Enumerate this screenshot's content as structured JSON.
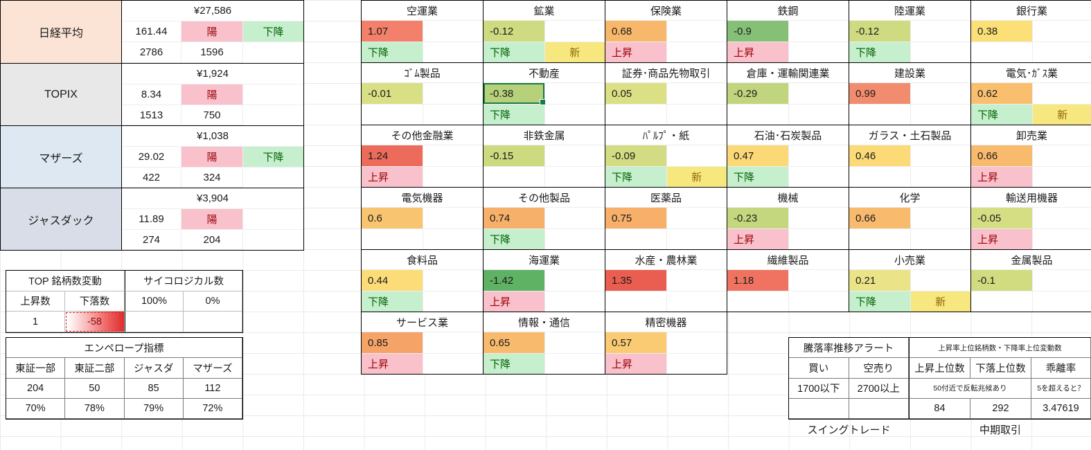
{
  "labels": {
    "up": "上昇",
    "down": "下降",
    "new": "新",
    "swing": "スイングトレード",
    "mid": "中期取引"
  },
  "indices": [
    {
      "name": "日経平均",
      "bg": "#fbe3d5",
      "price": "¥27,586",
      "change": "161.44",
      "candle": "陽",
      "trend": "下降",
      "adv": "2786",
      "dec": "1596"
    },
    {
      "name": "TOPIX",
      "bg": "#e8e8e8",
      "price": "¥1,924",
      "change": "8.34",
      "candle": "陽",
      "trend": "",
      "adv": "1513",
      "dec": "750"
    },
    {
      "name": "マザーズ",
      "bg": "#dde8f2",
      "price": "¥1,038",
      "change": "29.02",
      "candle": "陽",
      "trend": "下降",
      "adv": "422",
      "dec": "324"
    },
    {
      "name": "ジャスダック",
      "bg": "#d8dde7",
      "price": "¥3,904",
      "change": "11.89",
      "candle": "陽",
      "trend": "",
      "adv": "274",
      "dec": "204"
    }
  ],
  "sectors": [
    [
      {
        "name": "空運業",
        "value": "1.07",
        "color": "#f3806a",
        "trend": "down",
        "is_new": false
      },
      {
        "name": "鉱業",
        "value": "-0.12",
        "color": "#cfdb81",
        "trend": "down",
        "is_new": true
      },
      {
        "name": "保険業",
        "value": "0.68",
        "color": "#f8b86c",
        "trend": "up",
        "is_new": false
      },
      {
        "name": "鉄鋼",
        "value": "-0.9",
        "color": "#86c077",
        "trend": "up",
        "is_new": false
      },
      {
        "name": "陸運業",
        "value": "-0.12",
        "color": "#cfdb81",
        "trend": "down",
        "is_new": false
      },
      {
        "name": "銀行業",
        "value": "0.38",
        "color": "#fbe078",
        "trend": null,
        "is_new": false
      }
    ],
    [
      {
        "name": "ｺﾞﾑ製品",
        "value": "-0.01",
        "color": "#d9df84",
        "trend": null,
        "is_new": false
      },
      {
        "name": "不動産",
        "value": "-0.38",
        "color": "#b7d17b",
        "trend": "down",
        "is_new": false,
        "selected": true
      },
      {
        "name": "証券･商品先物取引",
        "value": "0.05",
        "color": "#dce085",
        "trend": null,
        "is_new": false
      },
      {
        "name": "倉庫・運輸関連業",
        "value": "-0.29",
        "color": "#c0d57d",
        "trend": null,
        "is_new": false
      },
      {
        "name": "建設業",
        "value": "0.99",
        "color": "#f28c6e",
        "trend": null,
        "is_new": false
      },
      {
        "name": "電気･ｶﾞｽ業",
        "value": "0.62",
        "color": "#f9bf6e",
        "trend": "down",
        "is_new": true
      }
    ],
    [
      {
        "name": "その他金融業",
        "value": "1.24",
        "color": "#ed6b5b",
        "trend": "up",
        "is_new": false
      },
      {
        "name": "非鉄金属",
        "value": "-0.15",
        "color": "#cdda80",
        "trend": null,
        "is_new": false
      },
      {
        "name": "ﾊﾟﾙﾌﾟ・紙",
        "value": "-0.09",
        "color": "#d3dc82",
        "trend": "down",
        "is_new": true
      },
      {
        "name": "石油･石炭製品",
        "value": "0.47",
        "color": "#fbd977",
        "trend": "down",
        "is_new": false
      },
      {
        "name": "ガラス・土石製品",
        "value": "0.46",
        "color": "#fbda77",
        "trend": null,
        "is_new": false
      },
      {
        "name": "卸売業",
        "value": "0.66",
        "color": "#f8ba6d",
        "trend": "up",
        "is_new": false
      }
    ],
    [
      {
        "name": "電気機器",
        "value": "0.6",
        "color": "#f9c470",
        "trend": null,
        "is_new": false
      },
      {
        "name": "その他製品",
        "value": "0.74",
        "color": "#f7b06a",
        "trend": "down",
        "is_new": false
      },
      {
        "name": "医薬品",
        "value": "0.75",
        "color": "#f7af6a",
        "trend": null,
        "is_new": false
      },
      {
        "name": "機械",
        "value": "-0.23",
        "color": "#c5d77e",
        "trend": "up",
        "is_new": false
      },
      {
        "name": "化学",
        "value": "0.66",
        "color": "#f8ba6d",
        "trend": null,
        "is_new": false
      },
      {
        "name": "輸送用機器",
        "value": "-0.05",
        "color": "#d6de83",
        "trend": "up",
        "is_new": false
      }
    ],
    [
      {
        "name": "食料品",
        "value": "0.44",
        "color": "#fbdc78",
        "trend": "down",
        "is_new": false
      },
      {
        "name": "海運業",
        "value": "-1.42",
        "color": "#5fb163",
        "trend": "up",
        "is_new": false
      },
      {
        "name": "水産・農林業",
        "value": "1.35",
        "color": "#ea5d51",
        "trend": null,
        "is_new": false
      },
      {
        "name": "繊維製品",
        "value": "1.18",
        "color": "#ef7360",
        "trend": null,
        "is_new": false
      },
      {
        "name": "小売業",
        "value": "0.21",
        "color": "#eae387",
        "trend": "down",
        "is_new": true
      },
      {
        "name": "金属製品",
        "value": "-0.1",
        "color": "#d1dc81",
        "trend": null,
        "is_new": false
      }
    ],
    [
      {
        "name": "サービス業",
        "value": "0.85",
        "color": "#f6a368",
        "trend": "up",
        "is_new": false
      },
      {
        "name": "情報・通信",
        "value": "0.65",
        "color": "#f8bb6d",
        "trend": "down",
        "is_new": false
      },
      {
        "name": "精密機器",
        "value": "0.57",
        "color": "#facb73",
        "trend": "up",
        "is_new": false
      }
    ]
  ],
  "counts": {
    "title": "TOP 銘柄数変動",
    "up_label": "上昇数",
    "down_label": "下落数",
    "up_value": "1",
    "down_value": "-58"
  },
  "psych": {
    "title": "サイコロジカル数",
    "v1": "100%",
    "v2": "0%"
  },
  "envelope": {
    "title": "エンペロープ指標",
    "markets": [
      "東証一部",
      "東証二部",
      "ジャスダ",
      "マザーズ"
    ],
    "counts": [
      "204",
      "50",
      "85",
      "112"
    ],
    "pcts": [
      "70%",
      "78%",
      "79%",
      "72%"
    ]
  },
  "alert": {
    "title": "騰落率推移アラート",
    "buy_label": "買い",
    "sell_label": "空売り",
    "buy_value": "1700以下",
    "sell_value": "2700以上"
  },
  "rank": {
    "title": "上昇率上位銘柄数・下降率上位変動数",
    "col1": "上昇上位数",
    "col2": "下落上位数",
    "col3": "乖離率",
    "note1": "50付近で反転兆候あり",
    "note2": "5を超えると？",
    "v1": "84",
    "v2": "292",
    "v3": "3.47619"
  }
}
